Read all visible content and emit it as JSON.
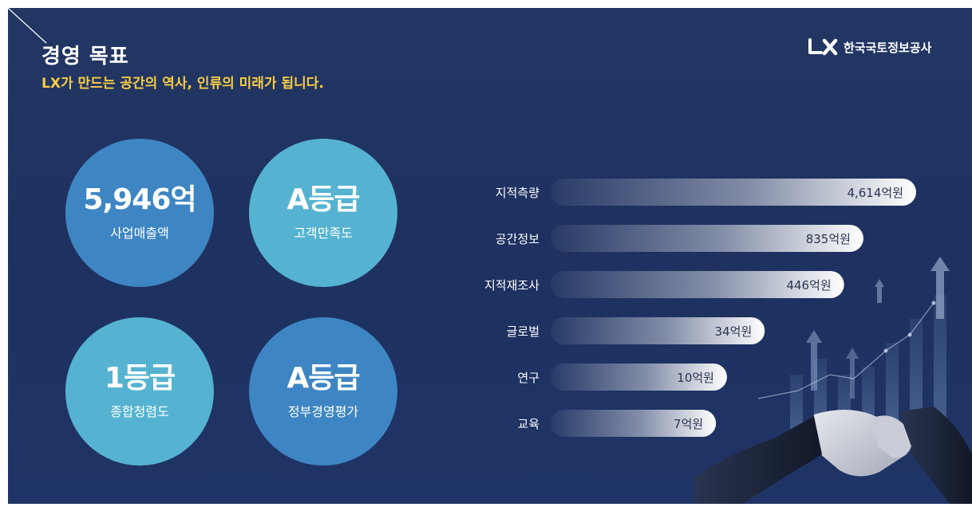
{
  "header": {
    "title": "경영 목표",
    "subtitle": "LX가 만드는 공간의 역사, 인류의 미래가 됩니다.",
    "logo_text": "한국국토정보공사"
  },
  "stats": [
    {
      "value": "5,946억",
      "label": "사업매출액"
    },
    {
      "value": "A등급",
      "label": "고객만족도"
    },
    {
      "value": "1등급",
      "label": "종합청렴도"
    },
    {
      "value": "A등급",
      "label": "정부경영평가"
    }
  ],
  "chart_data": {
    "type": "bar",
    "orientation": "horizontal",
    "categories": [
      "지적측량",
      "공간정보",
      "지적재조사",
      "글로벌",
      "연구",
      "교육"
    ],
    "values": [
      4614,
      835,
      446,
      34,
      10,
      7
    ],
    "value_labels": [
      "4,614억원",
      "835억원",
      "446억원",
      "34억원",
      "10억원",
      "7억원"
    ],
    "unit": "억원",
    "grid": false
  },
  "colors": {
    "background": "#1f3363",
    "accent": "#f6cc44",
    "circle_dark": "#3e86c3",
    "circle_light": "#55b3d1"
  }
}
